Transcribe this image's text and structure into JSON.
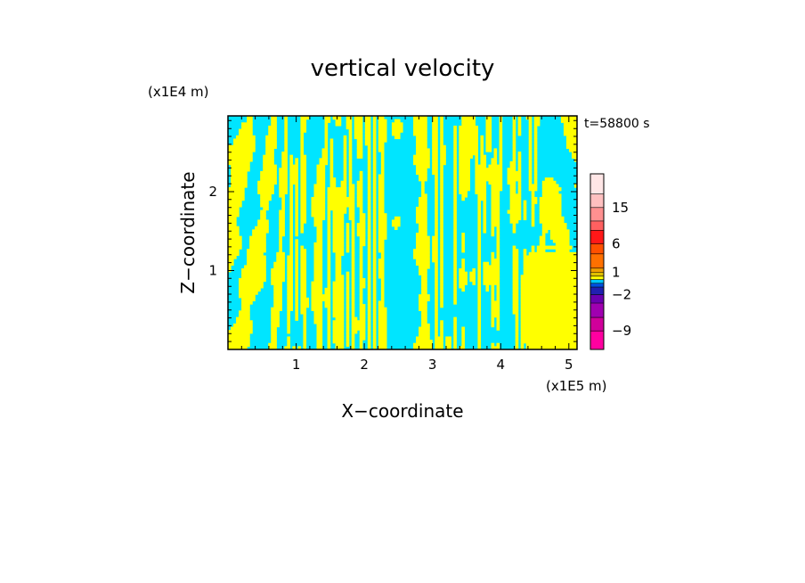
{
  "chart_data": {
    "type": "heatmap",
    "title": "vertical velocity",
    "xlabel": "X−coordinate",
    "ylabel": "Z−coordinate",
    "x_unit": "(x1E5 m)",
    "y_unit": "(x1E4 m)",
    "time_label": "t=58800 s",
    "xlim": [
      0,
      5.12
    ],
    "ylim": [
      0,
      2.96
    ],
    "x_ticks": [
      {
        "value": 1,
        "label": "1"
      },
      {
        "value": 2,
        "label": "2"
      },
      {
        "value": 3,
        "label": "3"
      },
      {
        "value": 4,
        "label": "4"
      },
      {
        "value": 5,
        "label": "5"
      }
    ],
    "y_ticks": [
      {
        "value": 1,
        "label": "1"
      },
      {
        "value": 2,
        "label": "2"
      }
    ],
    "field_colors": {
      "positive": "#ffff00",
      "negative": "#00e5ff"
    },
    "colorbar": {
      "levels": [
        -12,
        -9,
        -6,
        -4,
        -2,
        -1,
        -0.5,
        0,
        0.5,
        1,
        2,
        4,
        6,
        9,
        12,
        15,
        20,
        25
      ],
      "colors": [
        "#ff00a0",
        "#d0009a",
        "#a000b0",
        "#6a00b0",
        "#2020b0",
        "#0050e0",
        "#00c8ff",
        "#ffff00",
        "#e0c000",
        "#f0a000",
        "#ff7000",
        "#ff5000",
        "#ff1818",
        "#ff6060",
        "#ff9090",
        "#ffc0c0",
        "#ffe6e6"
      ],
      "labels": [
        {
          "value": -9,
          "label": "−9"
        },
        {
          "value": -2,
          "label": "−2"
        },
        {
          "value": 1,
          "label": "1"
        },
        {
          "value": 6,
          "label": "6"
        },
        {
          "value": 15,
          "label": "15"
        }
      ]
    },
    "legend": "right"
  }
}
